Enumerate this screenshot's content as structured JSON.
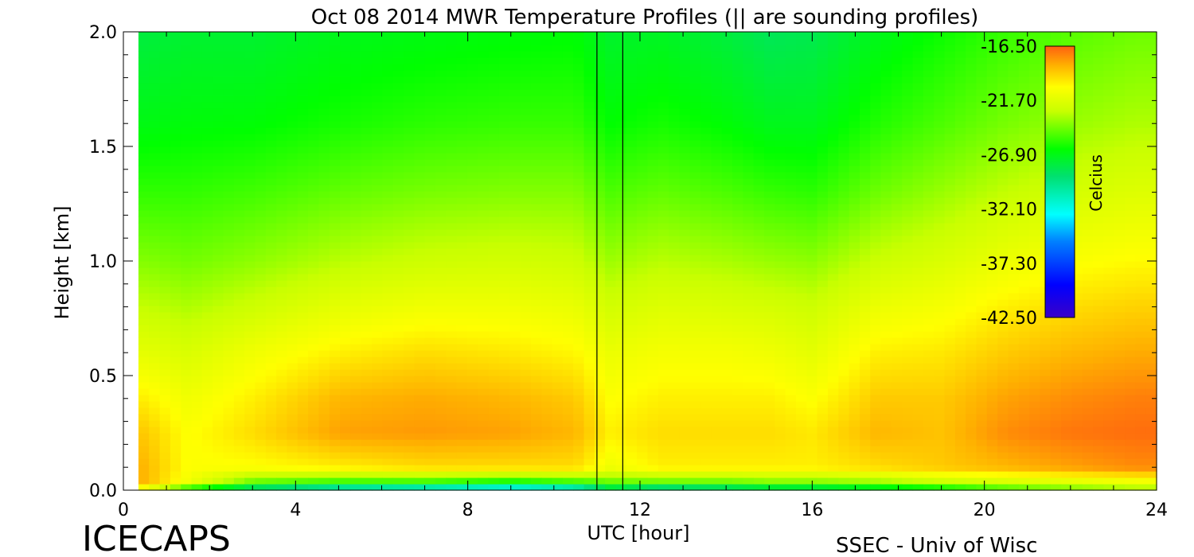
{
  "chart_data": {
    "type": "heatmap",
    "title": "Oct 08 2014 MWR Temperature Profiles (|| are sounding profiles)",
    "xlabel": "UTC [hour]",
    "ylabel": "Height [km]",
    "xlim": [
      0,
      24
    ],
    "ylim": [
      0,
      2
    ],
    "x_ticks": [
      0,
      4,
      8,
      12,
      16,
      20,
      24
    ],
    "x_tick_labels": [
      "0",
      "4",
      "8",
      "12",
      "16",
      "20",
      "24"
    ],
    "y_ticks": [
      0,
      0.5,
      1,
      1.5,
      2
    ],
    "y_tick_labels": [
      "0.0",
      "0.5",
      "1.0",
      "1.5",
      "2.0"
    ],
    "data_start_hour": 0.35,
    "sounding_profiles_utc": [
      11.0,
      11.6
    ],
    "colorbar": {
      "label": "Celcius",
      "min": -42.5,
      "max": -16.5,
      "tick_values": [
        -16.5,
        -21.7,
        -26.9,
        -32.1,
        -37.3,
        -42.5
      ],
      "tick_labels": [
        "-16.50",
        "-21.70",
        "-26.90",
        "-32.10",
        "-37.30",
        "-42.50"
      ]
    },
    "temperature_surface": {
      "description_units": "Celcius",
      "times_utc": [
        0.5,
        1.5,
        3,
        5,
        7,
        9,
        10.5,
        11.3,
        12.5,
        14,
        15,
        16,
        17.5,
        19,
        20.5,
        22,
        23.5
      ],
      "heights_km": [
        0.0,
        0.03,
        0.1,
        0.25,
        0.4,
        0.6,
        0.8,
        1.0,
        1.3,
        1.6,
        2.0
      ],
      "values": [
        [
          -22.5,
          -28,
          -31,
          -33,
          -34,
          -35,
          -34,
          -30,
          -32,
          -31,
          -30,
          -30,
          -29,
          -28,
          -26,
          -25,
          -24
        ],
        [
          -18.5,
          -21,
          -25,
          -26,
          -26,
          -27,
          -26,
          -25,
          -25,
          -25,
          -24.5,
          -24.5,
          -24,
          -23,
          -22.5,
          -22,
          -21.5
        ],
        [
          -18.5,
          -20.5,
          -20.5,
          -20,
          -19.5,
          -19.5,
          -19.5,
          -21,
          -20,
          -20,
          -20,
          -20,
          -19.5,
          -19,
          -18.5,
          -18,
          -17.5
        ],
        [
          -19,
          -20.5,
          -19.5,
          -18,
          -17.8,
          -18,
          -18.5,
          -20,
          -19.5,
          -19.5,
          -19.5,
          -19.8,
          -18.5,
          -18.8,
          -17.5,
          -17,
          -16.8
        ],
        [
          -20,
          -21,
          -20,
          -18.5,
          -18.2,
          -18.5,
          -19,
          -20.5,
          -20,
          -20,
          -20,
          -20.5,
          -19,
          -19,
          -18,
          -17.5,
          -17.2
        ],
        [
          -21.5,
          -22,
          -21,
          -20,
          -19.5,
          -19.8,
          -20.2,
          -21.2,
          -20.8,
          -20.8,
          -21,
          -21.5,
          -20,
          -19.8,
          -19,
          -18.5,
          -18.2
        ],
        [
          -22.8,
          -23.2,
          -22.5,
          -21.5,
          -21,
          -21,
          -21.3,
          -22.3,
          -21.8,
          -22,
          -22.2,
          -22.5,
          -21.2,
          -20.8,
          -20,
          -19.5,
          -19.2
        ],
        [
          -24,
          -24.3,
          -23.8,
          -23,
          -22.5,
          -22.3,
          -22.5,
          -23.5,
          -23,
          -23.3,
          -23.6,
          -23.8,
          -22.6,
          -22,
          -21.2,
          -20.6,
          -20.3
        ],
        [
          -25.5,
          -25.5,
          -25.2,
          -24.6,
          -24.2,
          -24,
          -24,
          -25,
          -24.6,
          -25,
          -25.4,
          -25.6,
          -24.4,
          -23.6,
          -22.8,
          -22.2,
          -21.8
        ],
        [
          -26.8,
          -26.6,
          -26.5,
          -26,
          -25.6,
          -25.4,
          -25.4,
          -26.4,
          -26,
          -26.5,
          -27,
          -27,
          -25.8,
          -25,
          -24.2,
          -23.6,
          -23.2
        ],
        [
          -27.8,
          -27.5,
          -27.5,
          -27,
          -26.8,
          -26.6,
          -26.5,
          -27.4,
          -27.2,
          -27.8,
          -28.4,
          -28.2,
          -27,
          -26.2,
          -25.4,
          -24.8,
          -24.4
        ]
      ]
    }
  },
  "footer": {
    "left_label": "ICECAPS",
    "right_label": "SSEC - Univ of Wisc"
  }
}
